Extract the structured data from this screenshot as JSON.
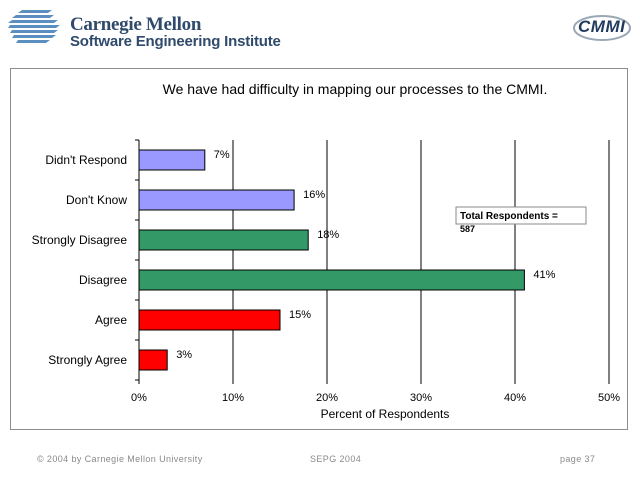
{
  "header": {
    "logo_line1": "Carnegie Mellon",
    "logo_line2": "Software Engineering Institute",
    "cmmi_logo_text": "CMMI"
  },
  "footer": {
    "copyright": "© 2004 by Carnegie Mellon University",
    "event": "SEPG 2004",
    "page": "page 37"
  },
  "colors": {
    "lavender": "#9999ff",
    "green": "#339966",
    "red": "#ff0000",
    "brand_blue": "#2f4a6b"
  },
  "chart_data": {
    "type": "bar",
    "orientation": "horizontal",
    "title": "We have had difficulty in mapping our processes to the CMMI.",
    "xlabel": "Percent of Respondents",
    "ylabel": "",
    "xlim": [
      0,
      50
    ],
    "xticks": [
      "0%",
      "10%",
      "20%",
      "30%",
      "40%",
      "50%"
    ],
    "grid": true,
    "categories": [
      "Didn't Respond",
      "Don't Know",
      "Strongly Disagree",
      "Disagree",
      "Agree",
      "Strongly Agree"
    ],
    "values": [
      7,
      16.5,
      18,
      41,
      15,
      3
    ],
    "labels": [
      "7%",
      "16%",
      "18%",
      "41%",
      "15%",
      "3%"
    ],
    "bar_colors": [
      "#9999ff",
      "#9999ff",
      "#339966",
      "#339966",
      "#ff0000",
      "#ff0000"
    ],
    "annotation": {
      "label": "Total Respondents =",
      "value": "587"
    }
  }
}
